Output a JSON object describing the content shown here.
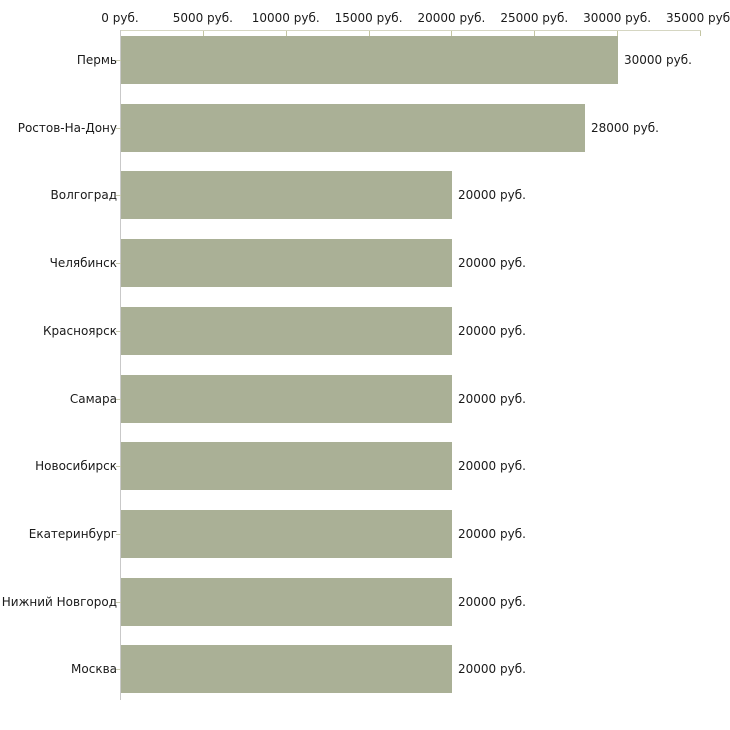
{
  "chart_data": {
    "type": "bar",
    "orientation": "horizontal",
    "title": "",
    "xlabel": "",
    "ylabel": "",
    "unit": "руб.",
    "xlim": [
      0,
      35000
    ],
    "grid": "off",
    "legend": "none",
    "categories": [
      "Пермь",
      "Ростов-На-Дону",
      "Волгоград",
      "Челябинск",
      "Красноярск",
      "Самара",
      "Новосибирск",
      "Екатеринбург",
      "Нижний Новгород",
      "Москва"
    ],
    "values": [
      30000,
      28000,
      20000,
      20000,
      20000,
      20000,
      20000,
      20000,
      20000,
      20000
    ],
    "value_labels": [
      "30000 руб.",
      "28000 руб.",
      "20000 руб.",
      "20000 руб.",
      "20000 руб.",
      "20000 руб.",
      "20000 руб.",
      "20000 руб.",
      "20000 руб.",
      "20000 руб."
    ],
    "x_ticks": [
      0,
      5000,
      10000,
      15000,
      20000,
      25000,
      30000,
      35000
    ],
    "x_tick_labels": [
      "0 руб.",
      "5000 руб.",
      "10000 руб.",
      "15000 руб.",
      "20000 руб.",
      "25000 руб.",
      "30000 руб.",
      "35000 руб."
    ],
    "colors": {
      "bar": "#aab096",
      "axis_line": "#d5d6c2",
      "axis_tick": "#c3c5a2",
      "category_tick": "#c9cbb0",
      "value_axis_line": "#c9c9c9",
      "text": "#1a1a1a",
      "background": "#ffffff"
    }
  }
}
